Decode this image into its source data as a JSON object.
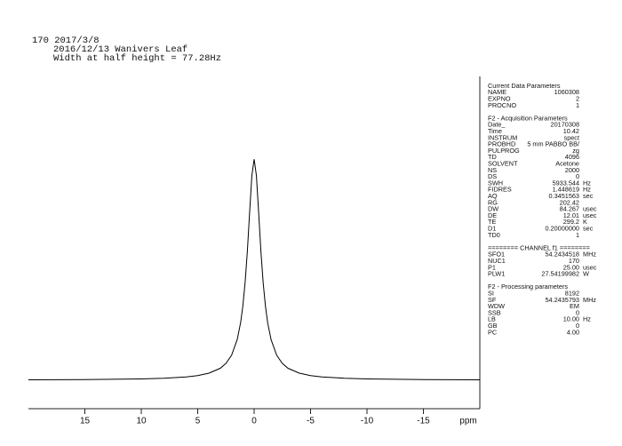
{
  "chart_data": {
    "type": "line",
    "title": "170 2017/3/8",
    "subtitle": "2016/12/13 Wanivers Leaf",
    "annotation": "Width at half height = 77.28Hz",
    "x_label": "ppm",
    "x": [
      20,
      15,
      10,
      8,
      6,
      5,
      4,
      3,
      2.5,
      2,
      1.5,
      1.2,
      1,
      0.8,
      0.6,
      0.4,
      0.2,
      0,
      -0.2,
      -0.4,
      -0.6,
      -0.8,
      -1,
      -1.2,
      -1.5,
      -2,
      -2.5,
      -3,
      -4,
      -5,
      -6,
      -8,
      -10,
      -15,
      -20
    ],
    "values": [
      0.1,
      0.2,
      0.5,
      0.8,
      1.4,
      2.0,
      3.1,
      5.3,
      7.5,
      11.2,
      18.3,
      25.9,
      33.5,
      44.1,
      58.3,
      75.9,
      92.6,
      100,
      92.6,
      75.9,
      58.3,
      44.1,
      33.5,
      25.9,
      18.3,
      11.2,
      7.5,
      5.3,
      3.1,
      2.0,
      1.4,
      0.8,
      0.5,
      0.2,
      0.1
    ],
    "color": "#000000",
    "xlim": [
      20,
      -20
    ],
    "ylim": [
      -13,
      156
    ],
    "xticks": [
      15,
      10,
      5,
      0,
      -5,
      -10,
      -15
    ]
  },
  "parameters": {
    "sections": [
      {
        "heading": "Current Data Parameters",
        "rows": [
          {
            "name": "NAME",
            "value": "1060308"
          },
          {
            "name": "EXPNO",
            "value": "2"
          },
          {
            "name": "PROCNO",
            "value": "1"
          }
        ]
      },
      {
        "heading": "F2 - Acquisition Parameters",
        "rows": [
          {
            "name": "Date_",
            "value": "20170308"
          },
          {
            "name": "Time",
            "value": "10.42"
          },
          {
            "name": "INSTRUM",
            "value": "spect"
          },
          {
            "name": "PROBHD",
            "value": "5 mm PABBO BB/"
          },
          {
            "name": "PULPROG",
            "value": "zg"
          },
          {
            "name": "TD",
            "value": "4096"
          },
          {
            "name": "SOLVENT",
            "value": "Acetone"
          },
          {
            "name": "NS",
            "value": "2000"
          },
          {
            "name": "DS",
            "value": "0"
          },
          {
            "name": "SWH",
            "value": "5933.544",
            "unit": "Hz"
          },
          {
            "name": "FIDRES",
            "value": "1.448619",
            "unit": "Hz"
          },
          {
            "name": "AQ",
            "value": "0.3451563",
            "unit": "sec"
          },
          {
            "name": "RG",
            "value": "202.42"
          },
          {
            "name": "DW",
            "value": "84.267",
            "unit": "usec"
          },
          {
            "name": "DE",
            "value": "12.01",
            "unit": "usec"
          },
          {
            "name": "TE",
            "value": "299.2",
            "unit": "K"
          },
          {
            "name": "D1",
            "value": "0.20000000",
            "unit": "sec"
          },
          {
            "name": "TD0",
            "value": "1"
          }
        ]
      },
      {
        "heading": "======== CHANNEL f1 ========",
        "rows": [
          {
            "name": "SFO1",
            "value": "54.2434518",
            "unit": "MHz"
          },
          {
            "name": "NUC1",
            "value": "170"
          },
          {
            "name": "P1",
            "value": "25.00",
            "unit": "usec"
          },
          {
            "name": "PLW1",
            "value": "27.54199982",
            "unit": "W"
          }
        ]
      },
      {
        "heading": "F2 - Processing parameters",
        "rows": [
          {
            "name": "SI",
            "value": "8192"
          },
          {
            "name": "SF",
            "value": "54.2435793",
            "unit": "MHz"
          },
          {
            "name": "WDW",
            "value": "EM"
          },
          {
            "name": "SSB",
            "value": "0"
          },
          {
            "name": "LB",
            "value": "10.00",
            "unit": "Hz"
          },
          {
            "name": "GB",
            "value": "0"
          },
          {
            "name": "PC",
            "value": "4.00"
          }
        ]
      }
    ]
  }
}
